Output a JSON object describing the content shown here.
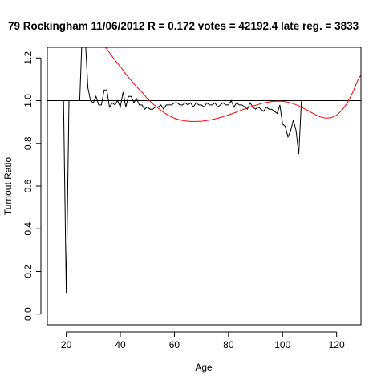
{
  "chart_data": {
    "type": "line",
    "title": "79 Rockingham 11/06/2012 R = 0.172 votes = 42192.4 late reg. = 3833",
    "xlabel": "Age",
    "ylabel": "Turnout Ratio",
    "xlim": [
      13,
      129
    ],
    "ylim": [
      -0.05,
      1.25
    ],
    "xticks": [
      20,
      40,
      60,
      80,
      100,
      120
    ],
    "yticks": [
      0.0,
      0.2,
      0.4,
      0.6,
      0.8,
      1.0,
      1.2
    ],
    "xtick_labels": [
      "20",
      "40",
      "60",
      "80",
      "100",
      "120"
    ],
    "ytick_labels": [
      "0.0",
      "0.2",
      "0.4",
      "0.6",
      "0.8",
      "1.0",
      "1.2"
    ],
    "reference_line": {
      "y": 1.0,
      "color": "#000000"
    },
    "grid": false,
    "series": [
      {
        "color": "#000000",
        "x": [
          18,
          19,
          20,
          21,
          22,
          23,
          24,
          25,
          26,
          27,
          28,
          29,
          30,
          31,
          32,
          33,
          34,
          35,
          36,
          37,
          38,
          39,
          40,
          41,
          42,
          43,
          44,
          45,
          46,
          47,
          48,
          49,
          50,
          51,
          52,
          53,
          54,
          55,
          56,
          57,
          58,
          59,
          60,
          61,
          62,
          63,
          64,
          65,
          66,
          67,
          68,
          69,
          70,
          71,
          72,
          73,
          74,
          75,
          76,
          77,
          78,
          79,
          80,
          81,
          82,
          83,
          84,
          85,
          86,
          87,
          88,
          89,
          90,
          91,
          92,
          93,
          94,
          95,
          96,
          97,
          98,
          99,
          100,
          101,
          102,
          103,
          104,
          105,
          106,
          107,
          108
        ],
        "y": [
          1.0,
          1.0,
          0.1,
          1.0,
          1.0,
          1.0,
          1.0,
          1.0,
          1.35,
          1.3,
          1.06,
          1.0,
          0.99,
          1.02,
          0.98,
          0.98,
          1.05,
          1.05,
          0.97,
          0.99,
          0.98,
          1.0,
          0.97,
          1.04,
          0.97,
          1.02,
          1.02,
          0.99,
          1.01,
          0.98,
          0.98,
          0.96,
          0.97,
          0.96,
          0.96,
          0.97,
          0.97,
          0.98,
          0.96,
          0.98,
          0.98,
          0.98,
          0.99,
          0.99,
          0.98,
          0.98,
          0.99,
          0.98,
          0.99,
          0.97,
          0.99,
          0.98,
          0.98,
          0.97,
          0.99,
          0.98,
          0.98,
          0.99,
          0.97,
          0.98,
          0.99,
          0.98,
          0.98,
          1.0,
          0.97,
          0.99,
          0.98,
          0.98,
          0.97,
          0.96,
          0.99,
          0.97,
          0.96,
          0.97,
          0.96,
          0.95,
          0.97,
          0.96,
          0.96,
          0.95,
          0.94,
          0.98,
          0.89,
          0.88,
          0.83,
          0.86,
          0.91,
          0.86,
          0.75,
          1.0,
          1.0
        ]
      },
      {
        "color": "#ff0000",
        "x": [
          28,
          30,
          32,
          34,
          36,
          38,
          40,
          42,
          44,
          46,
          48,
          50,
          52,
          54,
          56,
          58,
          60,
          62,
          64,
          66,
          68,
          70,
          72,
          74,
          76,
          78,
          80,
          82,
          84,
          86,
          88,
          90,
          92,
          94,
          96,
          98,
          100,
          102,
          104,
          106,
          108,
          110,
          112,
          114,
          116,
          118,
          120,
          122,
          124,
          126,
          128,
          129
        ],
        "y": [
          1.38,
          1.34,
          1.3,
          1.26,
          1.225,
          1.19,
          1.16,
          1.125,
          1.095,
          1.065,
          1.04,
          1.01,
          0.985,
          0.965,
          0.945,
          0.93,
          0.918,
          0.91,
          0.905,
          0.903,
          0.903,
          0.904,
          0.907,
          0.912,
          0.918,
          0.925,
          0.933,
          0.942,
          0.952,
          0.961,
          0.97,
          0.978,
          0.986,
          0.992,
          0.996,
          0.998,
          0.997,
          0.993,
          0.986,
          0.976,
          0.963,
          0.949,
          0.935,
          0.924,
          0.918,
          0.92,
          0.932,
          0.955,
          0.99,
          1.04,
          1.1,
          1.12
        ]
      }
    ]
  }
}
